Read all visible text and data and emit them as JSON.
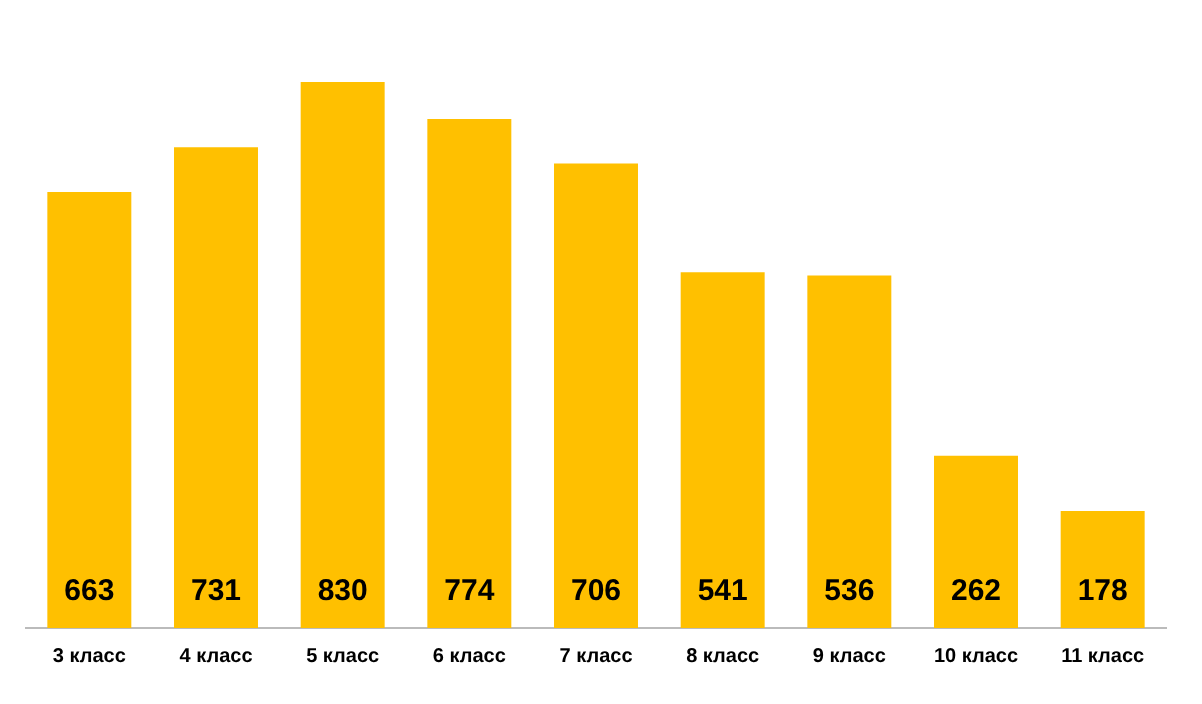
{
  "chart_data": {
    "type": "bar",
    "categories": [
      "3 класс",
      "4 класс",
      "5 класс",
      "6 класс",
      "7 класс",
      "8 класс",
      "9 класс",
      "10 класс",
      "11 класс"
    ],
    "values": [
      663,
      731,
      830,
      774,
      706,
      541,
      536,
      262,
      178
    ],
    "color": "#ffc000",
    "data_labels": true,
    "grid": false,
    "legend": false
  }
}
